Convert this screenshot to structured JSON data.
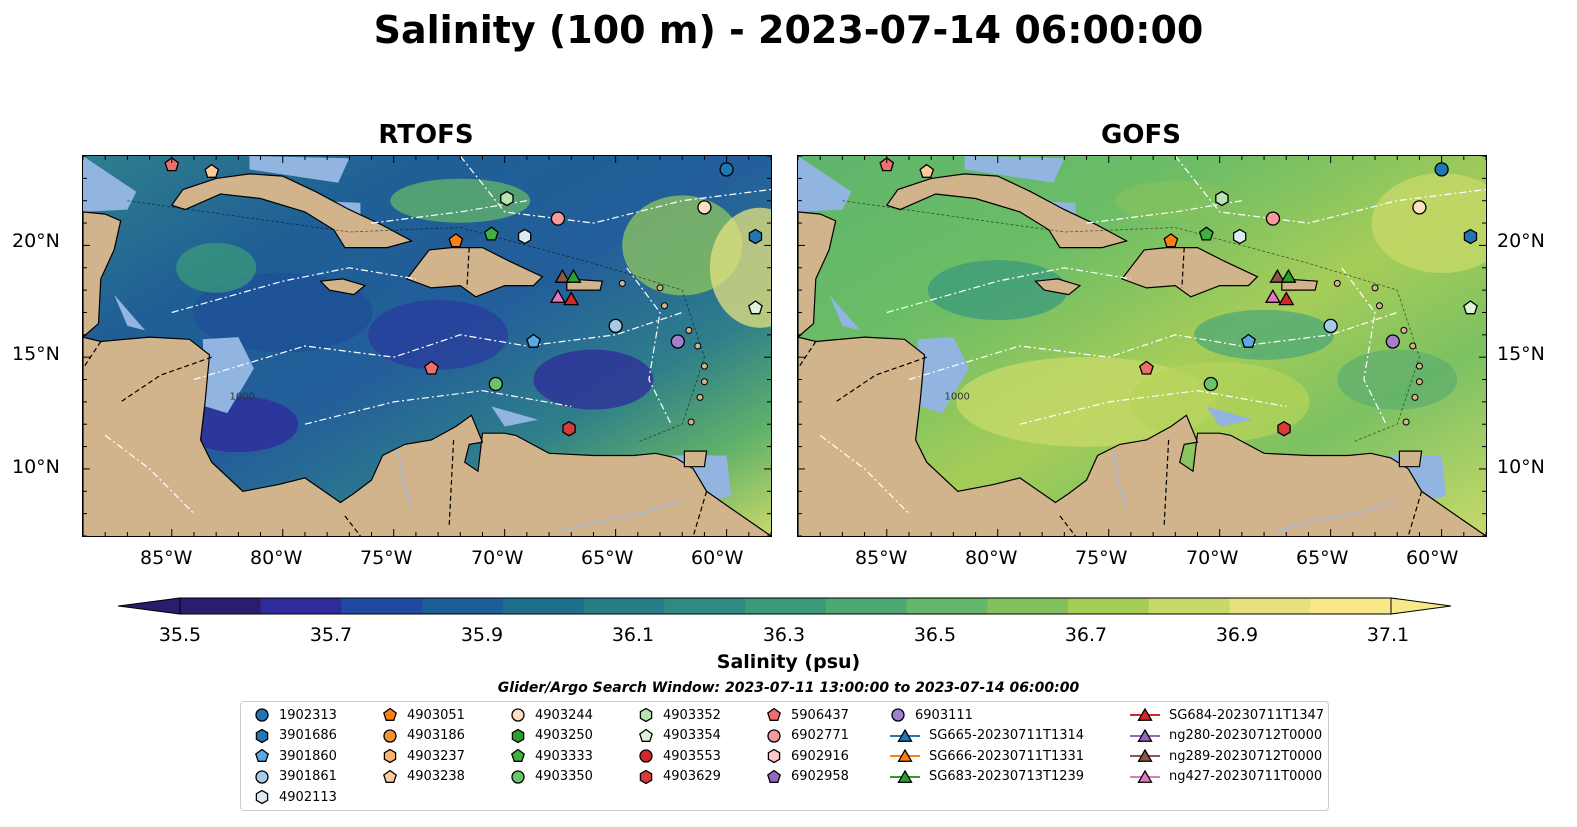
{
  "figure": {
    "title": "Salinity (100 m) - 2023-07-14 06:00:00",
    "panels": [
      {
        "title": "RTOFS",
        "style": "rtofs"
      },
      {
        "title": "GOFS",
        "style": "gofs"
      }
    ],
    "lon_ticks": [
      "85°W",
      "80°W",
      "75°W",
      "70°W",
      "65°W",
      "60°W"
    ],
    "lat_ticks": [
      "20°N",
      "15°N",
      "10°N"
    ],
    "bathymetry_label": "1000",
    "colorbar": {
      "label": "Salinity (psu)",
      "ticks": [
        "35.5",
        "35.7",
        "35.9",
        "36.1",
        "36.3",
        "36.5",
        "36.7",
        "36.9",
        "37.1"
      ],
      "range": [
        35.4,
        37.2
      ],
      "extend": "both",
      "colors": [
        "#2b1c6e",
        "#2f2b9a",
        "#1f4aa0",
        "#1d5e99",
        "#1f6e8c",
        "#267d86",
        "#2f8b82",
        "#3b9a7c",
        "#4ea875",
        "#65b56a",
        "#84c15e",
        "#a6cd58",
        "#c8d96a",
        "#e6e17f",
        "#f7e889"
      ]
    },
    "search_window": "Glider/Argo Search Window: 2023-07-11 13:00:00 to 2023-07-14 06:00:00",
    "legend": {
      "items": [
        {
          "label": "1902313",
          "marker": "circle",
          "color": "#1f77b4"
        },
        {
          "label": "3901686",
          "marker": "hexagon",
          "color": "#1f77b4"
        },
        {
          "label": "3901860",
          "marker": "pentagon",
          "color": "#5aa9e6"
        },
        {
          "label": "3901861",
          "marker": "circle",
          "color": "#a6cbea"
        },
        {
          "label": "4902113",
          "marker": "hexagon",
          "color": "#deebf7"
        },
        {
          "label": "4903051",
          "marker": "pentagon",
          "color": "#ff7f0e"
        },
        {
          "label": "4903186",
          "marker": "circle",
          "color": "#f5932f"
        },
        {
          "label": "4903237",
          "marker": "hexagon",
          "color": "#fdb170"
        },
        {
          "label": "4903238",
          "marker": "pentagon",
          "color": "#fdcc9a"
        },
        {
          "label": "4903244",
          "marker": "circle",
          "color": "#fde0c2"
        },
        {
          "label": "4903250",
          "marker": "hexagon",
          "color": "#2ca02c"
        },
        {
          "label": "4903333",
          "marker": "pentagon",
          "color": "#3fb13f"
        },
        {
          "label": "4903350",
          "marker": "circle",
          "color": "#6cc46a"
        },
        {
          "label": "4903352",
          "marker": "hexagon",
          "color": "#b7e4b0"
        },
        {
          "label": "4903354",
          "marker": "pentagon",
          "color": "#dff3da"
        },
        {
          "label": "4903553",
          "marker": "circle",
          "color": "#d62728"
        },
        {
          "label": "4903629",
          "marker": "hexagon",
          "color": "#d93a3a"
        },
        {
          "label": "5906437",
          "marker": "pentagon",
          "color": "#f26d6d"
        },
        {
          "label": "6902771",
          "marker": "circle",
          "color": "#f49a9a"
        },
        {
          "label": "6902916",
          "marker": "hexagon",
          "color": "#fbc9c9"
        },
        {
          "label": "6902958",
          "marker": "pentagon",
          "color": "#9467bd"
        },
        {
          "label": "6903111",
          "marker": "circle",
          "color": "#a47fcb"
        },
        {
          "label": "SG665-20230711T1314",
          "marker": "triangle-line",
          "color": "#1f77b4"
        },
        {
          "label": "SG666-20230711T1331",
          "marker": "triangle-line",
          "color": "#ff7f0e"
        },
        {
          "label": "SG683-20230713T1239",
          "marker": "triangle-line",
          "color": "#2ca02c"
        },
        {
          "label": "SG684-20230711T1347",
          "marker": "triangle-line",
          "color": "#d62728"
        },
        {
          "label": "ng280-20230712T0000",
          "marker": "triangle-line",
          "color": "#9467bd"
        },
        {
          "label": "ng289-20230712T0000",
          "marker": "triangle-line",
          "color": "#8c564b"
        },
        {
          "label": "ng427-20230711T0000",
          "marker": "triangle-line",
          "color": "#e377c2"
        }
      ]
    },
    "platforms": [
      {
        "id": "1902313",
        "lon": -60.0,
        "lat": 23.4
      },
      {
        "id": "3901686",
        "lon": -58.7,
        "lat": 20.4
      },
      {
        "id": "3901860",
        "lon": -68.7,
        "lat": 15.7
      },
      {
        "id": "3901861",
        "lon": -65.0,
        "lat": 16.4
      },
      {
        "id": "4902113",
        "lon": -69.1,
        "lat": 20.4
      },
      {
        "id": "4903051",
        "lon": -72.2,
        "lat": 20.2
      },
      {
        "id": "4903238",
        "lon": -83.2,
        "lat": 23.3
      },
      {
        "id": "4903244",
        "lon": -61.0,
        "lat": 21.7
      },
      {
        "id": "4903333",
        "lon": -70.6,
        "lat": 20.5
      },
      {
        "id": "4903350",
        "lon": -70.4,
        "lat": 13.8
      },
      {
        "id": "4903352",
        "lon": -69.9,
        "lat": 22.1
      },
      {
        "id": "4903354",
        "lon": -58.7,
        "lat": 17.2
      },
      {
        "id": "4903629",
        "lon": -67.1,
        "lat": 11.8
      },
      {
        "id": "5906437",
        "lon": -73.3,
        "lat": 14.5
      },
      {
        "id": "5906437b",
        "lon": -85.0,
        "lat": 23.6
      },
      {
        "id": "6902771",
        "lon": -67.6,
        "lat": 21.2
      },
      {
        "id": "6903111",
        "lon": -62.2,
        "lat": 15.7
      },
      {
        "id": "SG684-20230711T1347",
        "lon": -67.0,
        "lat": 17.6
      },
      {
        "id": "ng427-20230711T0000",
        "lon": -67.6,
        "lat": 17.7
      },
      {
        "id": "ng289-20230712T0000",
        "lon": -67.4,
        "lat": 18.6
      },
      {
        "id": "SG683-20230713T1239",
        "lon": -66.9,
        "lat": 18.6
      }
    ]
  }
}
